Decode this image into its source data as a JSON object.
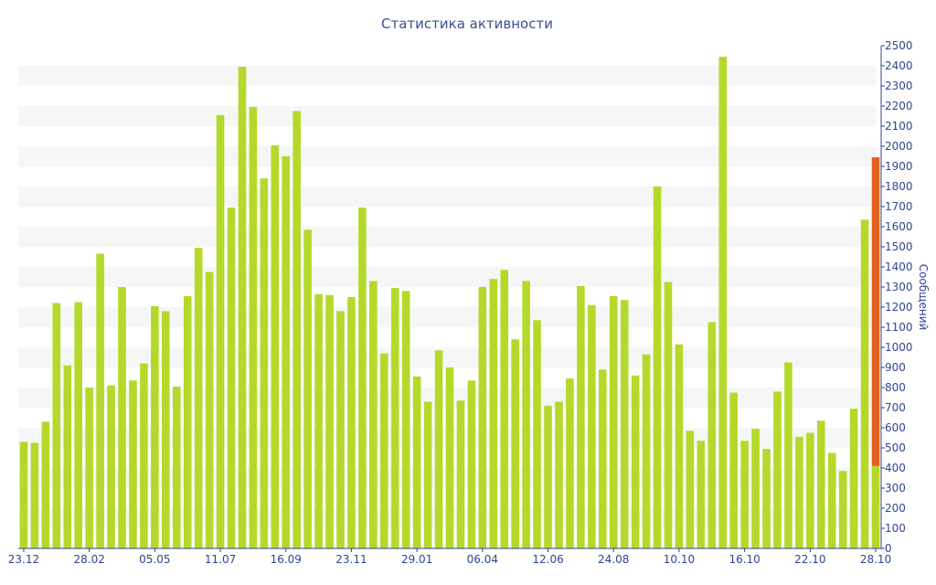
{
  "chart_data": {
    "type": "bar",
    "title": "Статистика активности",
    "ylabel": "Сообщений",
    "xlabel": "",
    "ylim": [
      0,
      2500
    ],
    "y_ticks": [
      0,
      100,
      200,
      300,
      400,
      500,
      600,
      700,
      800,
      900,
      1000,
      1100,
      1200,
      1300,
      1400,
      1500,
      1600,
      1700,
      1800,
      1900,
      2000,
      2100,
      2200,
      2300,
      2400,
      2500
    ],
    "y_axis_side": "right",
    "grid": "alternating horizontal bands",
    "x_tick_labels": [
      {
        "index": 0,
        "label": "23.12"
      },
      {
        "index": 6,
        "label": "28.02"
      },
      {
        "index": 12,
        "label": "05.05"
      },
      {
        "index": 18,
        "label": "11.07"
      },
      {
        "index": 24,
        "label": "16.09"
      },
      {
        "index": 30,
        "label": "23.11"
      },
      {
        "index": 36,
        "label": "29.01"
      },
      {
        "index": 42,
        "label": "06.04"
      },
      {
        "index": 48,
        "label": "12.06"
      },
      {
        "index": 54,
        "label": "24.08"
      },
      {
        "index": 60,
        "label": "10.10"
      },
      {
        "index": 66,
        "label": "16.10"
      },
      {
        "index": 72,
        "label": "22.10"
      },
      {
        "index": 78,
        "label": "28.10"
      }
    ],
    "series": [
      {
        "color": "#b5d92a",
        "values": [
          530,
          525,
          630,
          1220,
          910,
          1225,
          800,
          1465,
          810,
          1300,
          835,
          920,
          1205,
          1180,
          805,
          1255,
          1495,
          1375,
          2155,
          1695,
          2395,
          2195,
          1840,
          2005,
          1950,
          2175,
          1585,
          1265,
          1260,
          1180,
          1250,
          1695,
          1330,
          970,
          1295,
          1280,
          855,
          730,
          985,
          900,
          735,
          835,
          1300,
          1340,
          1385,
          1040,
          1330,
          1135,
          710,
          730,
          845,
          1305,
          1210,
          890,
          1255,
          1235,
          860,
          965,
          1800,
          1325,
          1015,
          585,
          535,
          1125,
          2445,
          775,
          535,
          595,
          495,
          780,
          925,
          555,
          575,
          635,
          475,
          385,
          695,
          1635,
          410
        ]
      },
      {
        "color": "#e2601f",
        "values": [
          0,
          0,
          0,
          0,
          0,
          0,
          0,
          0,
          0,
          0,
          0,
          0,
          0,
          0,
          0,
          0,
          0,
          0,
          0,
          0,
          0,
          0,
          0,
          0,
          0,
          0,
          0,
          0,
          0,
          0,
          0,
          0,
          0,
          0,
          0,
          0,
          0,
          0,
          0,
          0,
          0,
          0,
          0,
          0,
          0,
          0,
          0,
          0,
          0,
          0,
          0,
          0,
          0,
          0,
          0,
          0,
          0,
          0,
          0,
          0,
          0,
          0,
          0,
          0,
          0,
          0,
          0,
          0,
          0,
          0,
          0,
          0,
          0,
          0,
          0,
          0,
          0,
          0,
          1535
        ]
      }
    ]
  }
}
